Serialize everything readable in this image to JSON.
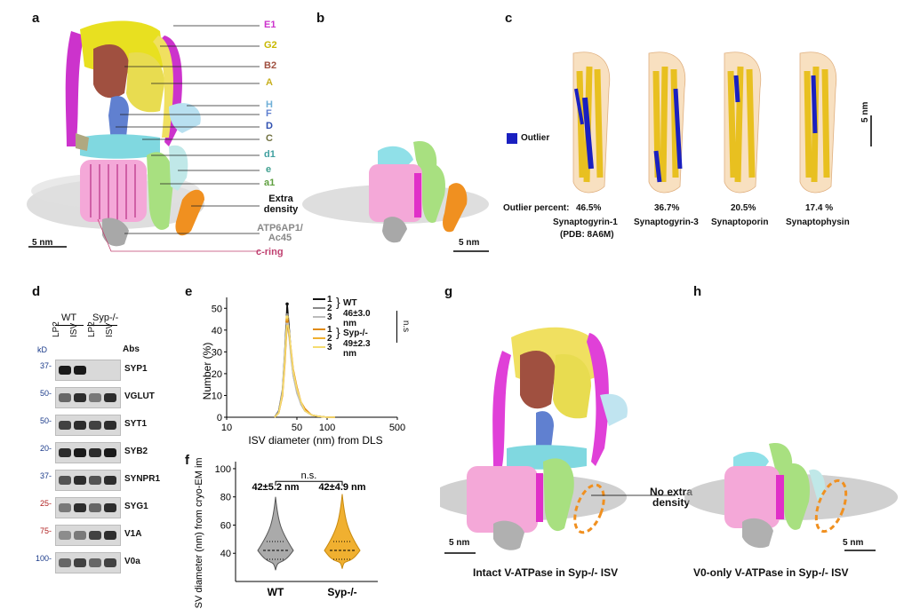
{
  "panels": {
    "a": "a",
    "b": "b",
    "c": "c",
    "d": "d",
    "e": "e",
    "f": "f",
    "g": "g",
    "h": "h"
  },
  "panel_a": {
    "subunits": [
      "E1",
      "G2",
      "B2",
      "A",
      "H",
      "F",
      "D",
      "C",
      "d1",
      "e",
      "a1"
    ],
    "extra_density": "Extra density",
    "atp6ap1": "ATP6AP1/ Ac45",
    "c_ring": "c-ring",
    "scale": "5 nm",
    "colors": {
      "E1": "#cc33cc",
      "G2": "#e8e020",
      "B2": "#a05040",
      "A": "#e0c030",
      "H": "#88c8e8",
      "F": "#6080d0",
      "D": "#3050b0",
      "C": "#909060",
      "d1": "#50b0b0",
      "e": "#40a090",
      "a1": "#60a040",
      "c_ring": "#c04070"
    }
  },
  "panel_b": {
    "scale": "5 nm"
  },
  "panel_c": {
    "legend": "Outlier",
    "outlier_label": "Outlier percent:",
    "scale": "5 nm",
    "proteins": [
      {
        "percent": "46.5%",
        "name": "Synaptogyrin-1",
        "sub": "(PDB: 8A6M)"
      },
      {
        "percent": "36.7%",
        "name": "Synaptogyrin-3",
        "sub": ""
      },
      {
        "percent": "20.5%",
        "name": "Synaptoporin",
        "sub": ""
      },
      {
        "percent": "17.4 %",
        "name": "Synaptophysin",
        "sub": ""
      }
    ]
  },
  "panel_d": {
    "groups": [
      "WT",
      "Syp-/-"
    ],
    "lanes": [
      "LP2",
      "ISV",
      "LP2",
      "ISV"
    ],
    "kd": "kD",
    "abs": "Abs",
    "rows": [
      {
        "name": "SYP1",
        "marker": "37-",
        "marker_color": "#1a3a8a"
      },
      {
        "name": "VGLUT",
        "marker": "50-",
        "marker_color": "#1a3a8a"
      },
      {
        "name": "SYT1",
        "marker": "50-",
        "marker_color": "#1a3a8a"
      },
      {
        "name": "SYB2",
        "marker": "20-",
        "marker_color": "#1a3a8a"
      },
      {
        "name": "SYNPR1",
        "marker": "37-",
        "marker_color": "#1a3a8a"
      },
      {
        "name": "SYG1",
        "marker": "25-",
        "marker_color": "#b02020"
      },
      {
        "name": "V1A",
        "marker": "75-",
        "marker_color": "#b02020"
      },
      {
        "name": "V0a",
        "marker": "100-",
        "marker_color": "#1a3a8a"
      }
    ]
  },
  "chart_data": [
    {
      "type": "line",
      "panel": "e",
      "xlabel": "ISV diameter (nm) from DLS",
      "ylabel": "Number (%)",
      "xscale": "log",
      "xlim": [
        10,
        500
      ],
      "ylim": [
        0,
        55
      ],
      "xticks": [
        "10",
        "50",
        "100",
        "500"
      ],
      "yticks": [
        "0",
        "10",
        "20",
        "30",
        "40",
        "50"
      ],
      "legend": {
        "wt_label": "WT",
        "wt_stat": "46±3.0 nm",
        "syp_label": "Syp-/-",
        "syp_stat": "49±2.3 nm",
        "ns": "n.s",
        "reps": [
          "1",
          "2",
          "3"
        ]
      },
      "x": [
        30,
        33,
        36,
        38,
        40,
        42,
        44,
        46,
        50,
        55,
        60,
        70,
        80,
        100,
        120
      ],
      "series": [
        {
          "name": "1",
          "group": "WT",
          "color": "#111111",
          "values": [
            0,
            3,
            12,
            30,
            52,
            40,
            28,
            20,
            12,
            6,
            3,
            1,
            0.5,
            0,
            0
          ]
        },
        {
          "name": "2",
          "group": "WT",
          "color": "#888888",
          "values": [
            0,
            3,
            13,
            31,
            47,
            38,
            27,
            19,
            12,
            6,
            3,
            1,
            0.5,
            0,
            0
          ]
        },
        {
          "name": "3",
          "group": "WT",
          "color": "#bbbbbb",
          "values": [
            0,
            2,
            11,
            28,
            43,
            36,
            26,
            19,
            11,
            6,
            3,
            1,
            0.5,
            0,
            0
          ]
        },
        {
          "name": "1",
          "group": "Syp-/-",
          "color": "#e08a10",
          "values": [
            0,
            2,
            10,
            25,
            44,
            38,
            30,
            22,
            14,
            7,
            4,
            1,
            0.5,
            0,
            0
          ]
        },
        {
          "name": "2",
          "group": "Syp-/-",
          "color": "#f0b030",
          "values": [
            0,
            2,
            11,
            27,
            45,
            38,
            29,
            21,
            13,
            7,
            3,
            1,
            0.5,
            0,
            0
          ]
        },
        {
          "name": "3",
          "group": "Syp-/-",
          "color": "#f5dc70",
          "values": [
            0,
            2,
            11,
            28,
            46,
            39,
            29,
            21,
            13,
            7,
            3,
            1,
            0.5,
            0,
            0
          ]
        }
      ]
    },
    {
      "type": "violin",
      "panel": "f",
      "ylabel": "ISV diameter (nm) from cryo-EM images",
      "categories": [
        "WT",
        "Syp-/-"
      ],
      "yticks": [
        "40",
        "60",
        "80",
        "100"
      ],
      "ylim": [
        20,
        105
      ],
      "annotations": [
        "42±5.2 nm",
        "42±4.9 nm"
      ],
      "ns": "n.s.",
      "median": [
        42,
        42
      ],
      "colors": [
        "#aaaaaa",
        "#f0b030"
      ]
    }
  ],
  "panel_g": {
    "caption": "Intact V-ATPase in Syp-/- ISV",
    "scale": "5 nm"
  },
  "panel_h": {
    "caption": "V0-only V-ATPase in Syp-/- ISV",
    "scale": "5 nm",
    "no_extra": "No extra density"
  }
}
